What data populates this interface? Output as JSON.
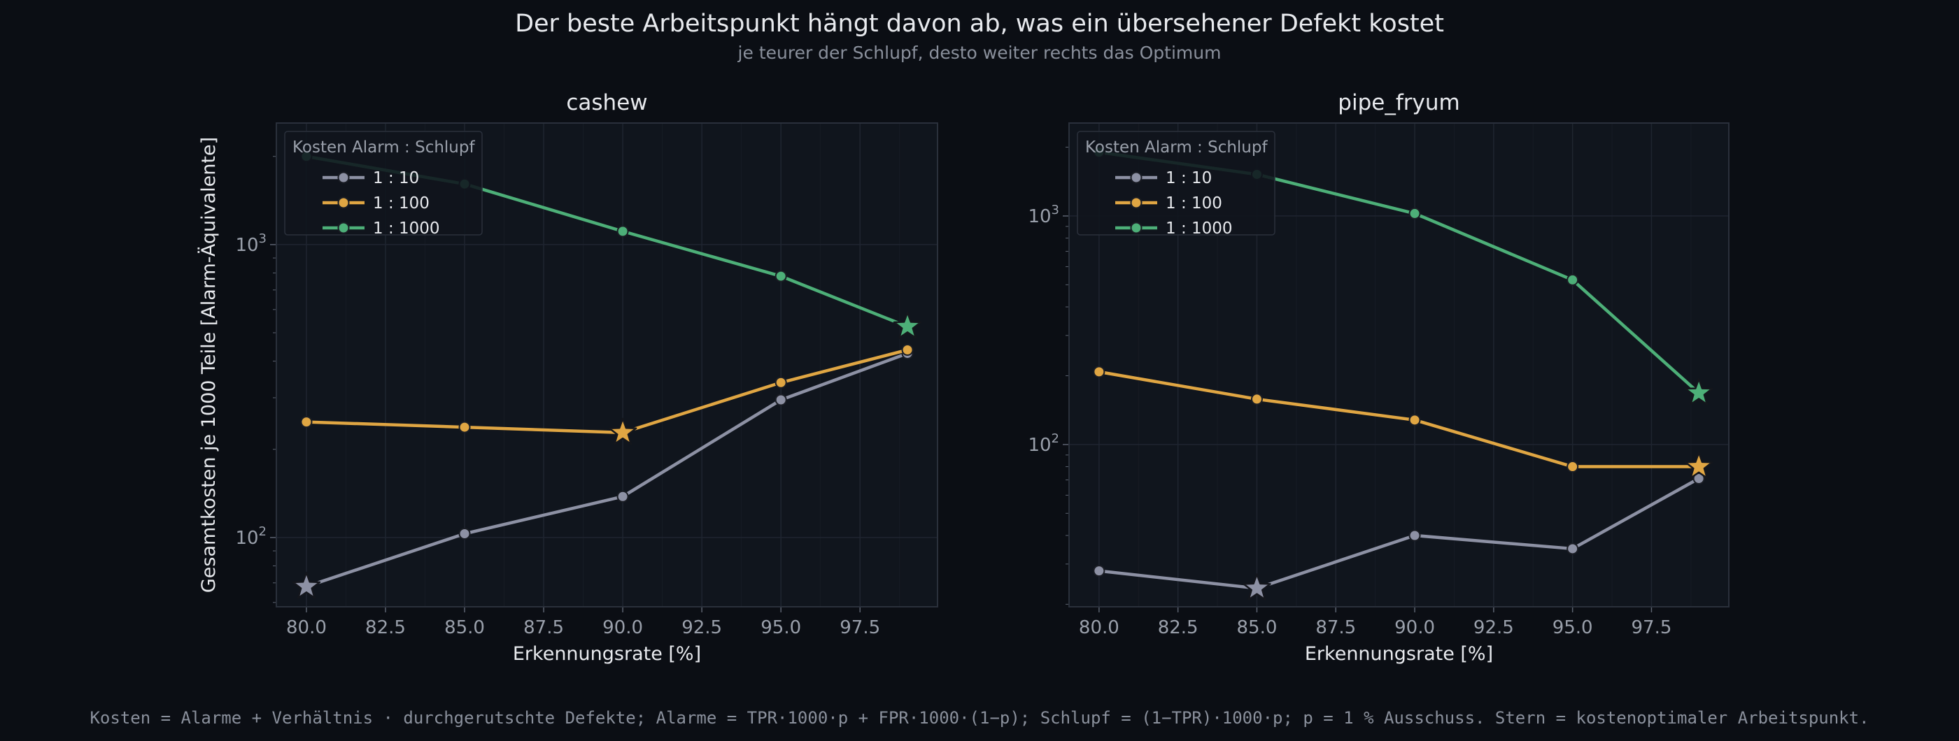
{
  "title": "Der beste Arbeitspunkt hängt davon ab, was ein übersehener Defekt kostet",
  "subtitle": "je teurer der Schlupf, desto weiter rechts das Optimum",
  "footnote": "Kosten = Alarme + Verhältnis · durchgerutschte Defekte;   Alarme = TPR·1000·p + FPR·1000·(1−p);   Schlupf = (1−TPR)·1000·p;   p = 1 % Ausschuss.   Stern = kostenoptimaler Arbeitspunkt.",
  "colors": {
    "background": "#0b0e14",
    "plot_background": "#10151d",
    "grid": "#1f2530",
    "spine": "#2a303b"
  },
  "chart_data": [
    {
      "type": "line",
      "title": "cashew",
      "xlabel": "Erkennungsrate [%]",
      "ylabel": "Gesamtkosten je 1000 Teile [Alarm-Äquivalente]",
      "y_scale": "log",
      "grid": true,
      "xlim": [
        79.05,
        99.95
      ],
      "ylim": [
        58,
        2600
      ],
      "x_ticks": [
        "80.0",
        "82.5",
        "85.0",
        "87.5",
        "90.0",
        "92.5",
        "95.0",
        "97.5"
      ],
      "y_ticks": [
        {
          "base": "10",
          "exp": "2"
        },
        {
          "base": "10",
          "exp": "3"
        }
      ],
      "legend": {
        "title": "Kosten Alarm : Schlupf",
        "position": "top-left"
      },
      "x": [
        80,
        85,
        90,
        95,
        99
      ],
      "series": [
        {
          "name": "1 : 10",
          "color": "#8d91a4",
          "values": [
            68,
            103,
            138,
            295,
            425
          ],
          "optimum_x": 80
        },
        {
          "name": "1 : 100",
          "color": "#e0a643",
          "values": [
            248,
            238,
            228,
            338,
            437
          ],
          "optimum_x": 90
        },
        {
          "name": "1 : 1000",
          "color": "#4daf78",
          "values": [
            2000,
            1610,
            1110,
            780,
            525
          ],
          "optimum_x": 99
        }
      ]
    },
    {
      "type": "line",
      "title": "pipe_fryum",
      "xlabel": "Erkennungsrate [%]",
      "ylabel": "",
      "y_scale": "log",
      "grid": true,
      "xlim": [
        79.05,
        99.95
      ],
      "ylim": [
        19.5,
        2550
      ],
      "x_ticks": [
        "80.0",
        "82.5",
        "85.0",
        "87.5",
        "90.0",
        "92.5",
        "95.0",
        "97.5"
      ],
      "y_ticks": [
        {
          "base": "10",
          "exp": "2"
        },
        {
          "base": "10",
          "exp": "3"
        }
      ],
      "legend": {
        "title": "Kosten Alarm : Schlupf",
        "position": "top-left"
      },
      "x": [
        80,
        85,
        90,
        95,
        99
      ],
      "series": [
        {
          "name": "1 : 10",
          "color": "#8d91a4",
          "values": [
            28,
            23.5,
            40,
            35,
            71
          ],
          "optimum_x": 85
        },
        {
          "name": "1 : 100",
          "color": "#e0a643",
          "values": [
            208,
            158,
            128,
            80,
            80
          ],
          "optimum_x": 99
        },
        {
          "name": "1 : 1000",
          "color": "#4daf78",
          "values": [
            1900,
            1520,
            1025,
            525,
            168
          ],
          "optimum_x": 99
        }
      ]
    }
  ]
}
